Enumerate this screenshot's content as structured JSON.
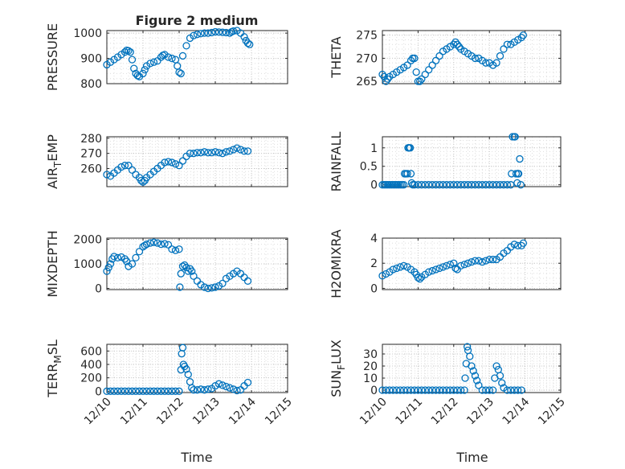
{
  "figure": {
    "title": "Figure 2 medium",
    "marker_color": "#0072BD",
    "x_tick_labels": [
      "12/10",
      "12/11",
      "12/12",
      "12/13",
      "12/14",
      "12/15"
    ],
    "x_label": "Time"
  },
  "chart_data": [
    {
      "type": "scatter",
      "id": "pressure",
      "ylabel": "PRESSURE",
      "ylim": [
        800,
        1010
      ],
      "yticks": [
        800,
        900,
        1000
      ],
      "xlim": [
        0,
        5
      ],
      "grid": "on",
      "series": [
        {
          "marker": "circle",
          "x": [
            0,
            0.1,
            0.2,
            0.3,
            0.4,
            0.5,
            0.55,
            0.6,
            0.65,
            0.7,
            0.75,
            0.8,
            0.85,
            0.9,
            1.0,
            1.05,
            1.1,
            1.2,
            1.3,
            1.4,
            1.5,
            1.55,
            1.6,
            1.7,
            1.8,
            1.9,
            1.95,
            2.0,
            2.05,
            2.1,
            2.2,
            2.3,
            2.4,
            2.5,
            2.6,
            2.7,
            2.8,
            2.9,
            3.0,
            3.1,
            3.2,
            3.3,
            3.4,
            3.45,
            3.5,
            3.6,
            3.7,
            3.8,
            3.85,
            3.9,
            3.95
          ],
          "y": [
            875,
            885,
            895,
            905,
            915,
            925,
            932,
            930,
            925,
            895,
            860,
            840,
            832,
            828,
            840,
            855,
            870,
            880,
            885,
            890,
            905,
            912,
            915,
            905,
            900,
            895,
            870,
            845,
            840,
            910,
            950,
            980,
            990,
            995,
            998,
            1000,
            1000,
            1002,
            1005,
            1004,
            1003,
            1002,
            1000,
            1005,
            1008,
            1010,
            1000,
            985,
            970,
            960,
            955
          ]
        }
      ]
    },
    {
      "type": "scatter",
      "id": "theta",
      "ylabel": "THETA",
      "ylim": [
        264.5,
        276
      ],
      "yticks": [
        265,
        270,
        275
      ],
      "xlim": [
        0,
        5
      ],
      "grid": "on",
      "series": [
        {
          "marker": "circle",
          "x": [
            0,
            0.05,
            0.1,
            0.15,
            0.2,
            0.3,
            0.4,
            0.5,
            0.6,
            0.7,
            0.8,
            0.85,
            0.9,
            0.95,
            1.0,
            1.05,
            1.1,
            1.2,
            1.3,
            1.4,
            1.5,
            1.6,
            1.7,
            1.8,
            1.9,
            2.0,
            2.05,
            2.1,
            2.15,
            2.2,
            2.3,
            2.4,
            2.5,
            2.6,
            2.7,
            2.8,
            2.9,
            3.0,
            3.1,
            3.2,
            3.3,
            3.4,
            3.5,
            3.6,
            3.7,
            3.8,
            3.9,
            3.95
          ],
          "y": [
            266.5,
            266,
            265,
            265.5,
            266,
            266.5,
            267,
            267.5,
            268,
            268.5,
            269.5,
            270,
            270,
            267,
            265,
            265,
            265.5,
            266.5,
            267.5,
            268.5,
            269.5,
            270.5,
            271.5,
            272,
            272.5,
            273,
            273.5,
            273,
            272.5,
            272,
            271.5,
            271,
            270.5,
            270,
            270,
            269.5,
            269,
            269,
            268.5,
            269,
            270.5,
            272,
            273,
            273,
            273.5,
            274,
            274.5,
            275
          ]
        }
      ]
    },
    {
      "type": "scatter",
      "id": "air_temp",
      "ylabel": "AIR_TEMP",
      "ylabel_subscript_char": "T",
      "ylim": [
        248,
        281
      ],
      "yticks": [
        260,
        270,
        280
      ],
      "xlim": [
        0,
        5
      ],
      "grid": "on",
      "series": [
        {
          "marker": "circle",
          "x": [
            0,
            0.1,
            0.2,
            0.3,
            0.4,
            0.5,
            0.6,
            0.7,
            0.8,
            0.9,
            0.95,
            1.0,
            1.05,
            1.1,
            1.2,
            1.3,
            1.4,
            1.5,
            1.6,
            1.7,
            1.8,
            1.9,
            2.0,
            2.1,
            2.2,
            2.3,
            2.4,
            2.5,
            2.6,
            2.7,
            2.8,
            2.9,
            3.0,
            3.1,
            3.2,
            3.3,
            3.4,
            3.5,
            3.6,
            3.7,
            3.8,
            3.9
          ],
          "y": [
            256,
            255,
            257,
            259,
            261,
            262,
            262,
            259,
            256,
            254,
            252,
            251,
            252,
            254,
            256,
            258,
            260,
            262,
            264,
            264.5,
            264,
            263,
            262,
            265,
            268,
            270,
            270,
            270.5,
            270.5,
            271,
            270.5,
            270.5,
            271,
            270.5,
            270,
            271,
            271.5,
            272.5,
            273.5,
            272.5,
            271.5,
            271.5
          ]
        }
      ]
    },
    {
      "type": "scatter",
      "id": "rainfall",
      "ylabel": "RAINFALL",
      "ylim": [
        -0.05,
        1.3
      ],
      "yticks": [
        0,
        0.5,
        1
      ],
      "ytick_labels": [
        "0",
        "0.5",
        "1"
      ],
      "xlim": [
        0,
        5
      ],
      "grid": "on",
      "series": [
        {
          "marker": "circle",
          "x": [
            0,
            0.05,
            0.1,
            0.15,
            0.2,
            0.25,
            0.3,
            0.35,
            0.4,
            0.45,
            0.5,
            0.55,
            0.6,
            0.62,
            0.66,
            0.7,
            0.72,
            0.75,
            0.78,
            0.8,
            0.82,
            0.85,
            0.9,
            1.0,
            1.1,
            1.2,
            1.3,
            1.4,
            1.5,
            1.6,
            1.7,
            1.8,
            1.9,
            2.0,
            2.1,
            2.2,
            2.3,
            2.4,
            2.5,
            2.6,
            2.7,
            2.8,
            2.9,
            3.0,
            3.1,
            3.2,
            3.3,
            3.4,
            3.5,
            3.6,
            3.62,
            3.65,
            3.7,
            3.72,
            3.75,
            3.78,
            3.8,
            3.82,
            3.85,
            3.88
          ],
          "y": [
            0,
            0,
            0,
            0,
            0,
            0,
            0,
            0,
            0,
            0,
            0,
            0,
            0,
            0.3,
            0.3,
            0.3,
            1.0,
            1.0,
            1.0,
            0.3,
            0.05,
            0,
            0,
            0,
            0,
            0,
            0,
            0,
            0,
            0,
            0,
            0,
            0,
            0,
            0,
            0,
            0,
            0,
            0,
            0,
            0,
            0,
            0,
            0,
            0,
            0,
            0,
            0,
            0,
            0,
            0.3,
            1.3,
            1.3,
            1.3,
            0.3,
            0.05,
            0.3,
            0.3,
            0.7,
            0
          ]
        }
      ]
    },
    {
      "type": "scatter",
      "id": "mixdepth",
      "ylabel": "MIXDEPTH",
      "ylim": [
        -50,
        2050
      ],
      "yticks": [
        0,
        1000,
        2000
      ],
      "xlim": [
        0,
        5
      ],
      "grid": "on",
      "series": [
        {
          "marker": "circle",
          "x": [
            0,
            0.05,
            0.1,
            0.15,
            0.2,
            0.3,
            0.4,
            0.5,
            0.55,
            0.6,
            0.7,
            0.8,
            0.9,
            1.0,
            1.05,
            1.1,
            1.2,
            1.3,
            1.4,
            1.5,
            1.6,
            1.7,
            1.8,
            1.9,
            2.0,
            2.02,
            2.05,
            2.1,
            2.15,
            2.2,
            2.25,
            2.3,
            2.35,
            2.4,
            2.5,
            2.6,
            2.7,
            2.8,
            2.9,
            3.0,
            3.1,
            3.2,
            3.3,
            3.4,
            3.5,
            3.6,
            3.7,
            3.8,
            3.9
          ],
          "y": [
            700,
            850,
            1000,
            1200,
            1300,
            1250,
            1280,
            1200,
            1100,
            900,
            1000,
            1250,
            1500,
            1700,
            1750,
            1800,
            1850,
            1880,
            1850,
            1800,
            1820,
            1780,
            1600,
            1550,
            1600,
            50,
            600,
            900,
            950,
            850,
            700,
            800,
            700,
            500,
            300,
            150,
            50,
            0,
            20,
            50,
            100,
            200,
            400,
            500,
            600,
            700,
            600,
            450,
            300
          ]
        }
      ]
    },
    {
      "type": "scatter",
      "id": "h2omixra",
      "ylabel": "H2OMIXRA",
      "ylim": [
        -0.1,
        4
      ],
      "yticks": [
        0,
        2,
        4
      ],
      "xlim": [
        0,
        5
      ],
      "grid": "on",
      "series": [
        {
          "marker": "circle",
          "x": [
            0,
            0.1,
            0.2,
            0.3,
            0.4,
            0.5,
            0.6,
            0.7,
            0.8,
            0.9,
            0.95,
            1.0,
            1.05,
            1.1,
            1.2,
            1.3,
            1.4,
            1.5,
            1.6,
            1.7,
            1.8,
            1.9,
            2.0,
            2.05,
            2.1,
            2.2,
            2.3,
            2.4,
            2.5,
            2.6,
            2.7,
            2.8,
            2.9,
            3.0,
            3.1,
            3.2,
            3.3,
            3.4,
            3.5,
            3.6,
            3.7,
            3.8,
            3.9,
            3.95
          ],
          "y": [
            1.0,
            1.15,
            1.3,
            1.5,
            1.6,
            1.7,
            1.8,
            1.7,
            1.5,
            1.3,
            1.1,
            0.85,
            0.75,
            0.9,
            1.1,
            1.3,
            1.4,
            1.5,
            1.6,
            1.7,
            1.8,
            1.9,
            2.0,
            1.6,
            1.5,
            1.8,
            1.9,
            2.0,
            2.1,
            2.2,
            2.2,
            2.1,
            2.2,
            2.3,
            2.3,
            2.3,
            2.5,
            2.8,
            3.0,
            3.3,
            3.5,
            3.4,
            3.4,
            3.6
          ]
        }
      ]
    },
    {
      "type": "scatter",
      "id": "terr_msl",
      "ylabel": "TERR_MSL",
      "ylabel_subscript_char": "M",
      "ylim": [
        -20,
        700
      ],
      "yticks": [
        0,
        200,
        400,
        600
      ],
      "xlim": [
        0,
        5
      ],
      "grid": "on",
      "series": [
        {
          "marker": "circle",
          "x": [
            0,
            0.1,
            0.2,
            0.3,
            0.4,
            0.5,
            0.6,
            0.7,
            0.8,
            0.9,
            1.0,
            1.1,
            1.2,
            1.3,
            1.4,
            1.5,
            1.6,
            1.7,
            1.8,
            1.9,
            2.0,
            2.05,
            2.07,
            2.1,
            2.12,
            2.15,
            2.2,
            2.25,
            2.3,
            2.35,
            2.4,
            2.5,
            2.6,
            2.7,
            2.8,
            2.9,
            3.0,
            3.1,
            3.2,
            3.3,
            3.4,
            3.5,
            3.6,
            3.7,
            3.8,
            3.9
          ],
          "y": [
            0,
            0,
            0,
            0,
            0,
            0,
            0,
            0,
            0,
            0,
            0,
            0,
            0,
            0,
            0,
            0,
            0,
            0,
            0,
            0,
            0,
            320,
            560,
            650,
            400,
            370,
            330,
            250,
            140,
            50,
            20,
            20,
            30,
            20,
            30,
            40,
            80,
            110,
            90,
            70,
            50,
            30,
            10,
            20,
            80,
            130
          ]
        }
      ]
    },
    {
      "type": "scatter",
      "id": "sun_flux",
      "ylabel": "SUN_FLUX",
      "ylabel_subscript_char": "F",
      "ylim": [
        -2,
        38
      ],
      "yticks": [
        0,
        10,
        20,
        30
      ],
      "xlim": [
        0,
        5
      ],
      "grid": "on",
      "series": [
        {
          "marker": "circle",
          "x": [
            0,
            0.1,
            0.2,
            0.3,
            0.4,
            0.5,
            0.6,
            0.7,
            0.8,
            0.9,
            1.0,
            1.1,
            1.2,
            1.3,
            1.4,
            1.5,
            1.6,
            1.7,
            1.8,
            1.9,
            2.0,
            2.1,
            2.2,
            2.3,
            2.32,
            2.35,
            2.38,
            2.4,
            2.45,
            2.5,
            2.55,
            2.6,
            2.65,
            2.7,
            2.8,
            2.9,
            3.0,
            3.1,
            3.15,
            3.2,
            3.25,
            3.3,
            3.35,
            3.4,
            3.5,
            3.6,
            3.7,
            3.8,
            3.9
          ],
          "y": [
            0,
            0,
            0,
            0,
            0,
            0,
            0,
            0,
            0,
            0,
            0,
            0,
            0,
            0,
            0,
            0,
            0,
            0,
            0,
            0,
            0,
            0,
            0,
            0,
            10,
            22,
            36,
            33,
            28,
            20,
            16,
            12,
            8,
            4,
            0,
            0,
            0,
            0,
            10,
            20,
            17,
            12,
            6,
            2,
            0,
            0,
            0,
            0,
            0
          ]
        }
      ]
    }
  ]
}
